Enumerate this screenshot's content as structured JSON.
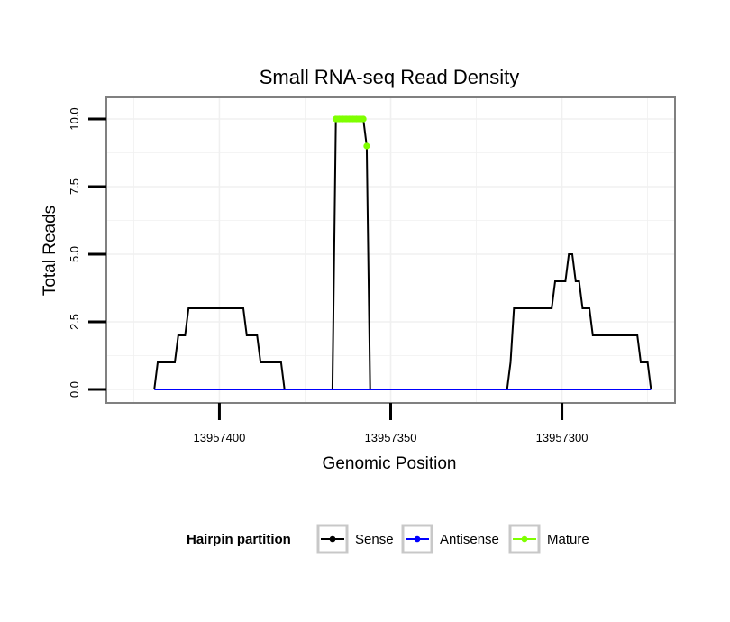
{
  "chart_data": {
    "type": "line",
    "title": "Small RNA-seq Read Density",
    "xlabel": "Genomic Position",
    "ylabel": "Total Reads",
    "x_reversed": true,
    "xlim": [
      13957433,
      13957267
    ],
    "ylim": [
      -0.5,
      10.8
    ],
    "xticks": [
      13957400,
      13957350,
      13957300
    ],
    "xtick_labels": [
      "13957400",
      "13957350",
      "13957300"
    ],
    "yticks": [
      0,
      2.5,
      5,
      7.5,
      10
    ],
    "ytick_labels": [
      "0.0",
      "2.5",
      "5.0",
      "7.5",
      "10.0"
    ],
    "grid": true,
    "legend": {
      "title": "Hairpin partition",
      "position": "bottom",
      "entries": [
        {
          "name": "Sense",
          "color": "#000000"
        },
        {
          "name": "Antisense",
          "color": "#0000ff"
        },
        {
          "name": "Mature",
          "color": "#7fff00"
        }
      ]
    },
    "series": [
      {
        "name": "Sense",
        "color": "#000000",
        "points": [
          [
            13957419,
            0
          ],
          [
            13957418,
            1
          ],
          [
            13957413,
            1
          ],
          [
            13957412,
            2
          ],
          [
            13957410,
            2
          ],
          [
            13957409,
            3
          ],
          [
            13957393,
            3
          ],
          [
            13957392,
            2
          ],
          [
            13957389,
            2
          ],
          [
            13957388,
            1
          ],
          [
            13957382,
            1
          ],
          [
            13957381,
            0
          ],
          [
            13957367,
            0
          ],
          [
            13957366,
            10
          ],
          [
            13957358,
            10
          ],
          [
            13957357,
            9
          ],
          [
            13957356,
            0
          ],
          [
            13957316,
            0
          ],
          [
            13957315,
            1
          ],
          [
            13957314,
            3
          ],
          [
            13957303,
            3
          ],
          [
            13957302,
            4
          ],
          [
            13957299,
            4
          ],
          [
            13957298,
            5
          ],
          [
            13957297,
            5
          ],
          [
            13957296,
            4
          ],
          [
            13957295,
            4
          ],
          [
            13957294,
            3
          ],
          [
            13957292,
            3
          ],
          [
            13957291,
            2
          ],
          [
            13957278,
            2
          ],
          [
            13957277,
            1
          ],
          [
            13957275,
            1
          ],
          [
            13957274,
            0
          ]
        ]
      },
      {
        "name": "Antisense",
        "color": "#0000ff",
        "points": [
          [
            13957419,
            0
          ],
          [
            13957274,
            0
          ]
        ]
      },
      {
        "name": "Mature",
        "color": "#7fff00",
        "x_start": 13957366,
        "x_end": 13957357,
        "values": [
          10,
          10,
          10,
          10,
          10,
          10,
          10,
          10,
          10,
          9
        ]
      }
    ]
  }
}
